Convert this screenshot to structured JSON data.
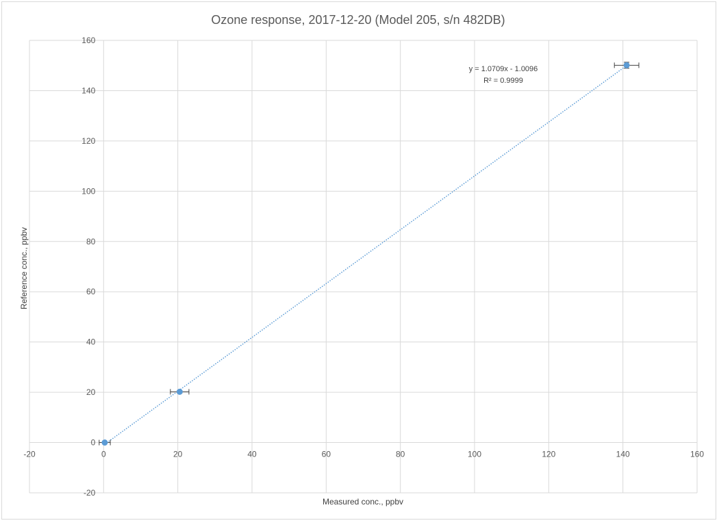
{
  "chart_data": {
    "type": "scatter",
    "title": "Ozone response, 2017-12-20 (Model 205, s/n 482DB)",
    "xlabel": "Measured conc., ppbv",
    "ylabel": "Reference conc., ppbv",
    "xlim": [
      -20,
      160
    ],
    "ylim": [
      -20,
      160
    ],
    "xticks": [
      -20,
      0,
      20,
      40,
      60,
      80,
      100,
      120,
      140,
      160
    ],
    "yticks": [
      -20,
      0,
      20,
      40,
      60,
      80,
      100,
      120,
      140,
      160
    ],
    "grid": true,
    "series": [
      {
        "points": [
          {
            "x": 0.3,
            "y": 0.0,
            "xerr": 1.5,
            "yerr": 0.3
          },
          {
            "x": 20.5,
            "y": 20.2,
            "xerr": 2.5,
            "yerr": 0.5
          },
          {
            "x": 141.0,
            "y": 150.1,
            "xerr": 3.3,
            "yerr": 1.2
          }
        ],
        "color": "#5b9bd5"
      }
    ],
    "trendline": {
      "type": "linear",
      "slope": 1.0709,
      "intercept": -1.0096,
      "x_range": [
        0.3,
        141.0
      ],
      "color": "#5b9bd5",
      "style": "dotted",
      "equation_label": "y = 1.0709x - 1.0096",
      "r2_label": "R² = 0.9999"
    }
  }
}
